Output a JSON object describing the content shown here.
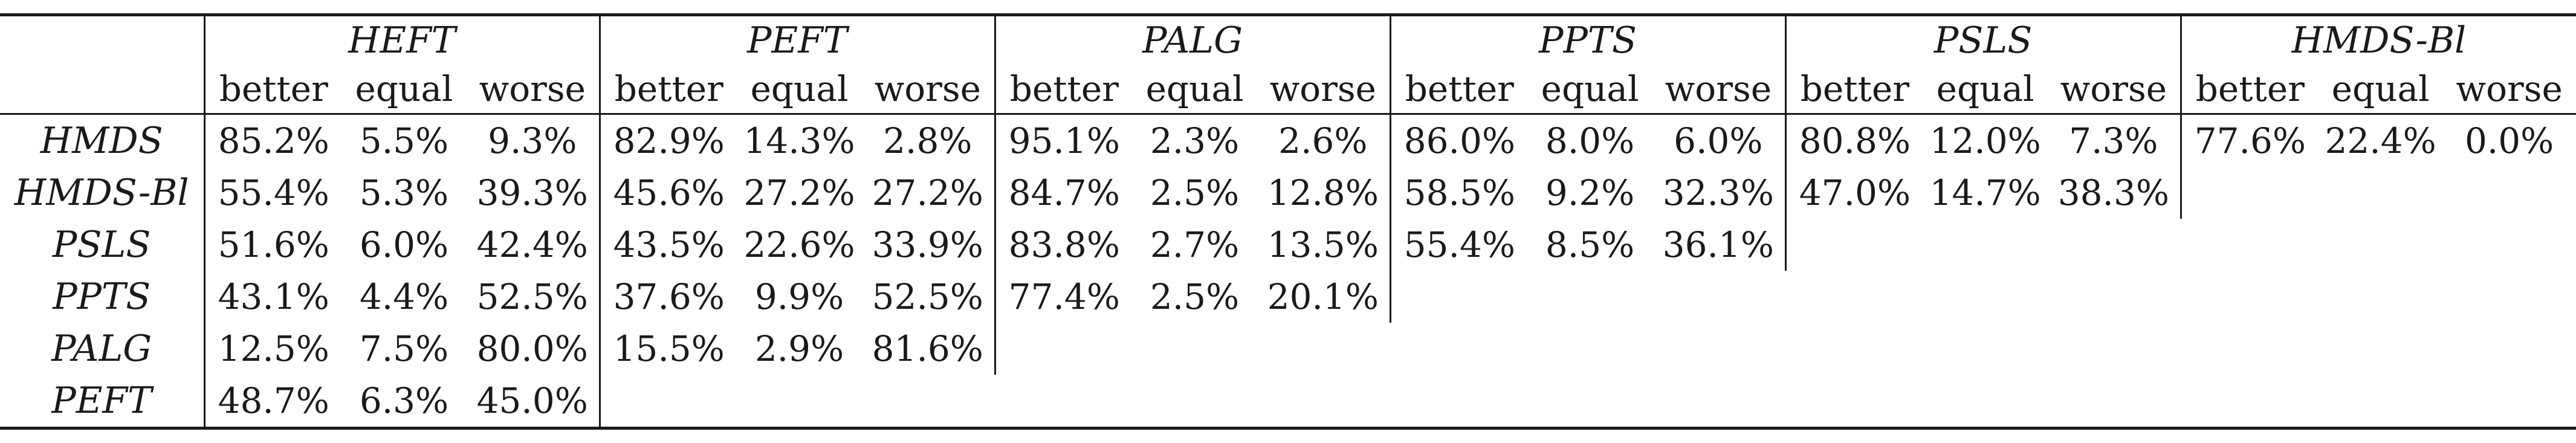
{
  "table": {
    "columns": [
      "HEFT",
      "PEFT",
      "PALG",
      "PPTS",
      "PSLS",
      "HMDS-Bl"
    ],
    "subheaders": [
      "better",
      "equal",
      "worse"
    ],
    "rows": [
      {
        "name": "HMDS",
        "cells": [
          [
            "85.2%",
            "5.5%",
            "9.3%"
          ],
          [
            "82.9%",
            "14.3%",
            "2.8%"
          ],
          [
            "95.1%",
            "2.3%",
            "2.6%"
          ],
          [
            "86.0%",
            "8.0%",
            "6.0%"
          ],
          [
            "80.8%",
            "12.0%",
            "7.3%"
          ],
          [
            "77.6%",
            "22.4%",
            "0.0%"
          ]
        ]
      },
      {
        "name": "HMDS-Bl",
        "cells": [
          [
            "55.4%",
            "5.3%",
            "39.3%"
          ],
          [
            "45.6%",
            "27.2%",
            "27.2%"
          ],
          [
            "84.7%",
            "2.5%",
            "12.8%"
          ],
          [
            "58.5%",
            "9.2%",
            "32.3%"
          ],
          [
            "47.0%",
            "14.7%",
            "38.3%"
          ]
        ]
      },
      {
        "name": "PSLS",
        "cells": [
          [
            "51.6%",
            "6.0%",
            "42.4%"
          ],
          [
            "43.5%",
            "22.6%",
            "33.9%"
          ],
          [
            "83.8%",
            "2.7%",
            "13.5%"
          ],
          [
            "55.4%",
            "8.5%",
            "36.1%"
          ]
        ]
      },
      {
        "name": "PPTS",
        "cells": [
          [
            "43.1%",
            "4.4%",
            "52.5%"
          ],
          [
            "37.6%",
            "9.9%",
            "52.5%"
          ],
          [
            "77.4%",
            "2.5%",
            "20.1%"
          ]
        ]
      },
      {
        "name": "PALG",
        "cells": [
          [
            "12.5%",
            "7.5%",
            "80.0%"
          ],
          [
            "15.5%",
            "2.9%",
            "81.6%"
          ]
        ]
      },
      {
        "name": "PEFT",
        "cells": [
          [
            "48.7%",
            "6.3%",
            "45.0%"
          ]
        ]
      }
    ]
  }
}
